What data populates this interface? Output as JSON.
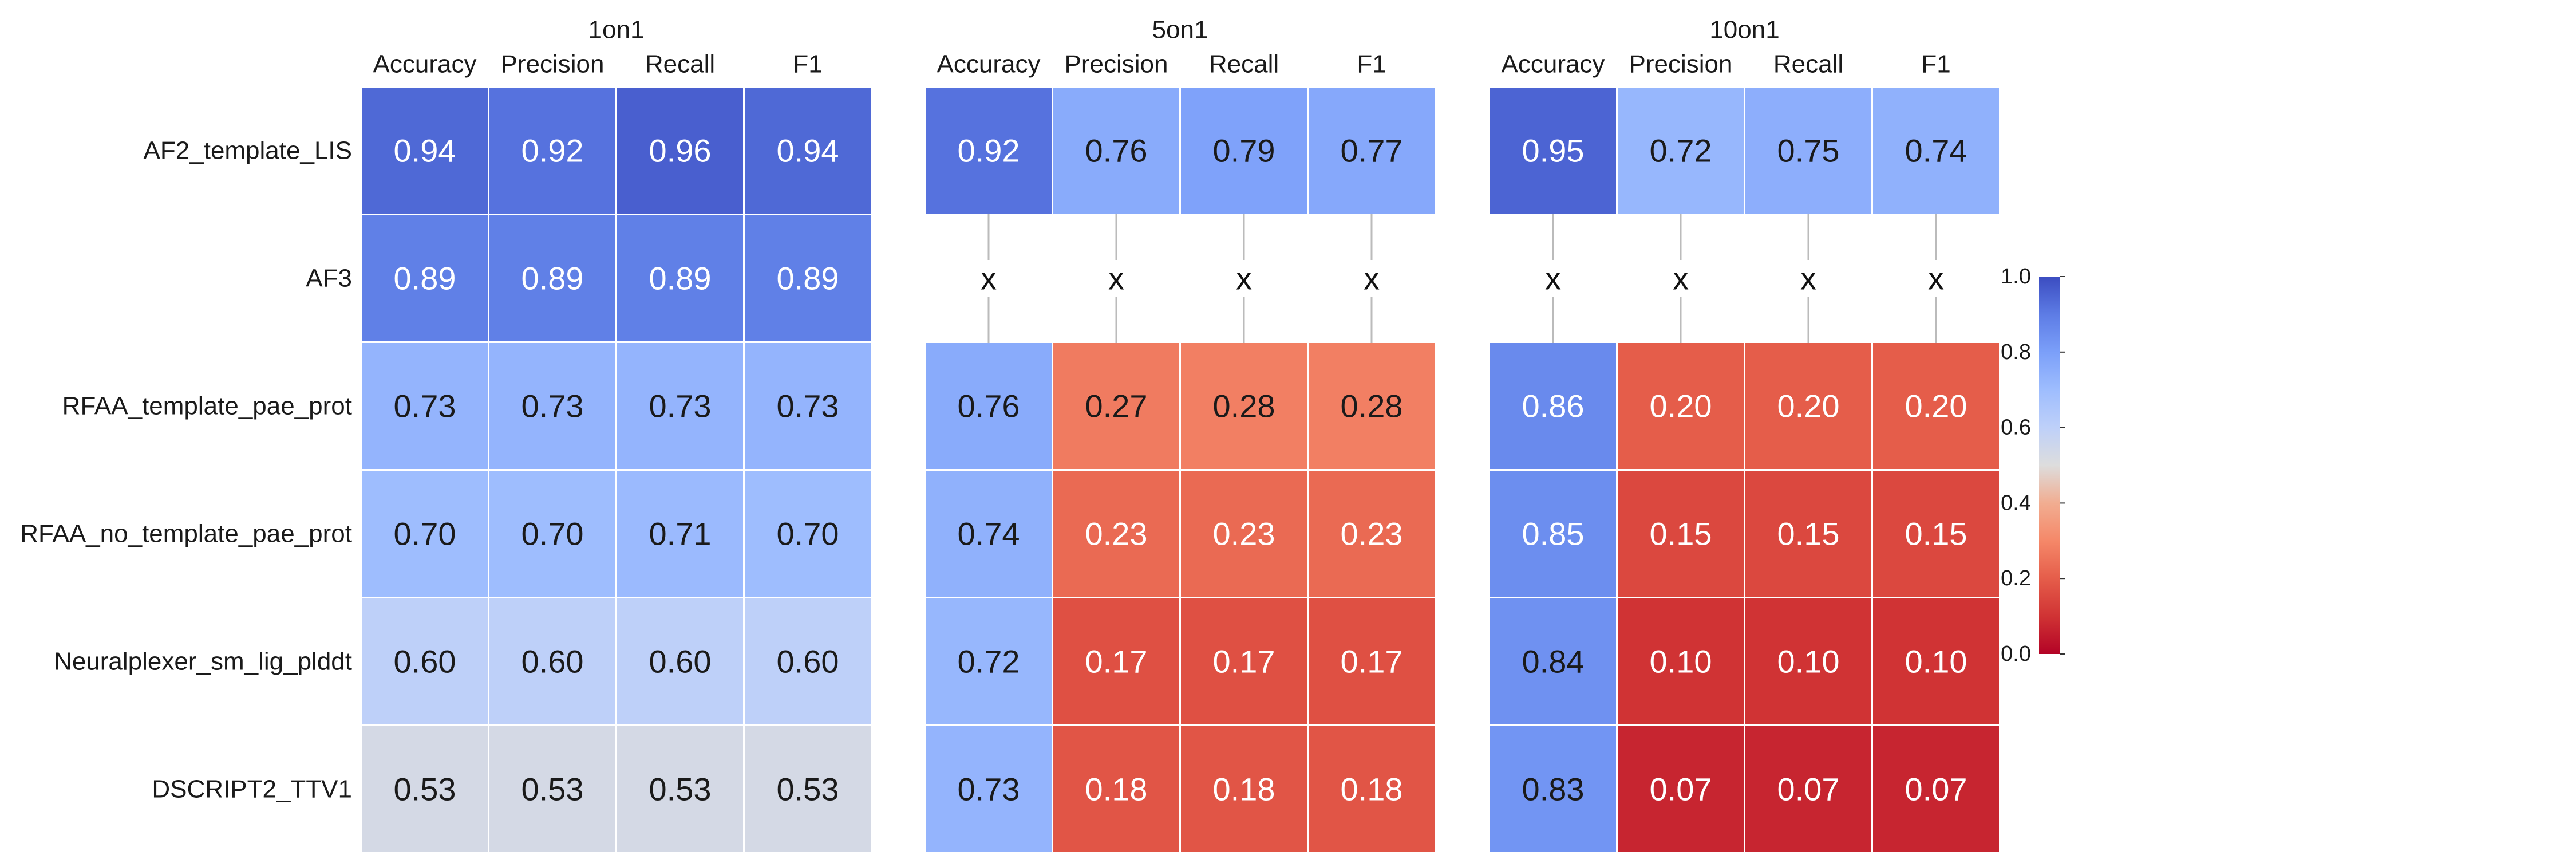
{
  "chart_data": {
    "type": "heatmap",
    "title": "",
    "row_labels": [
      "AF2_template_LIS",
      "AF3",
      "RFAA_template_pae_prot",
      "RFAA_no_template_pae_prot",
      "Neuralplexer_sm_lig_plddt",
      "DSCRIPT2_TTV1"
    ],
    "column_labels": [
      "Accuracy",
      "Precision",
      "Recall",
      "F1"
    ],
    "missing_marker": "x",
    "panels": [
      {
        "title": "1on1",
        "values": [
          [
            0.94,
            0.92,
            0.96,
            0.94
          ],
          [
            0.89,
            0.89,
            0.89,
            0.89
          ],
          [
            0.73,
            0.73,
            0.73,
            0.73
          ],
          [
            0.7,
            0.7,
            0.71,
            0.7
          ],
          [
            0.6,
            0.6,
            0.6,
            0.6
          ],
          [
            0.53,
            0.53,
            0.53,
            0.53
          ]
        ]
      },
      {
        "title": "5on1",
        "values": [
          [
            0.92,
            0.76,
            0.79,
            0.77
          ],
          [
            null,
            null,
            null,
            null
          ],
          [
            0.76,
            0.27,
            0.28,
            0.28
          ],
          [
            0.74,
            0.23,
            0.23,
            0.23
          ],
          [
            0.72,
            0.17,
            0.17,
            0.17
          ],
          [
            0.73,
            0.18,
            0.18,
            0.18
          ]
        ]
      },
      {
        "title": "10on1",
        "values": [
          [
            0.95,
            0.72,
            0.75,
            0.74
          ],
          [
            null,
            null,
            null,
            null
          ],
          [
            0.86,
            0.2,
            0.2,
            0.2
          ],
          [
            0.85,
            0.15,
            0.15,
            0.15
          ],
          [
            0.84,
            0.1,
            0.1,
            0.1
          ],
          [
            0.83,
            0.07,
            0.07,
            0.07
          ]
        ]
      }
    ],
    "colorbar": {
      "colormap": "coolwarm_r",
      "vmin": 0.0,
      "vmax": 1.0,
      "ticks": [
        0.0,
        0.2,
        0.4,
        0.6,
        0.8,
        1.0
      ],
      "tick_labels": [
        "0.0",
        "0.2",
        "0.4",
        "0.6",
        "0.8",
        "1.0"
      ],
      "position": "right"
    }
  }
}
